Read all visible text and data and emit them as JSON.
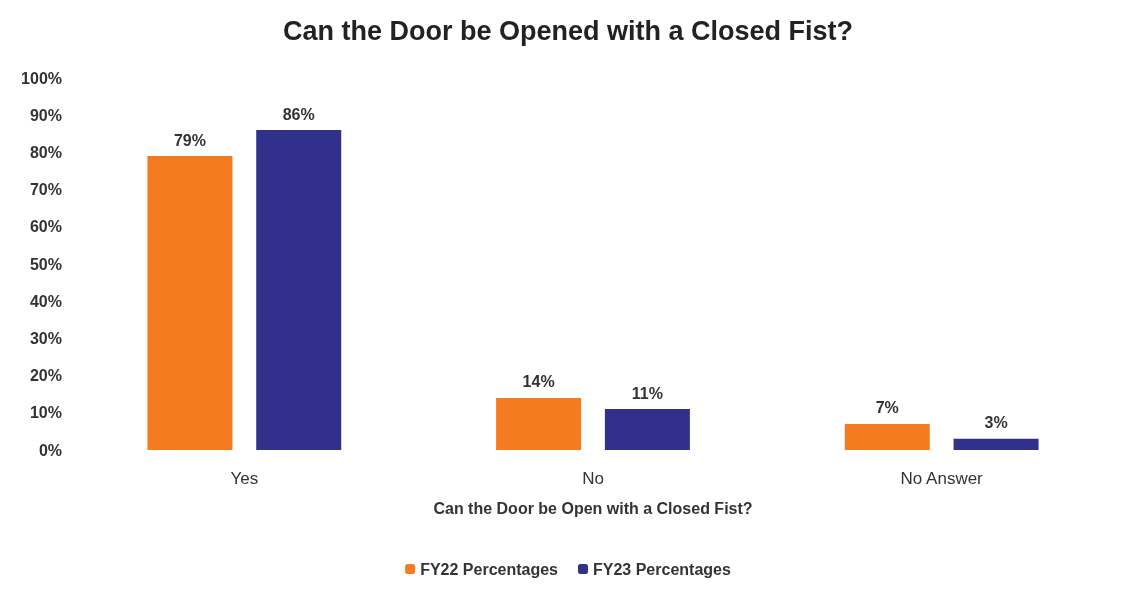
{
  "chart_data": {
    "type": "bar",
    "title": "Can the Door be Opened with a Closed Fist?",
    "xlabel": "Can the Door be Open with a Closed Fist?",
    "categories": [
      "Yes",
      "No",
      "No Answer"
    ],
    "series": [
      {
        "name": "FY22 Percentages",
        "color": "#f47b20",
        "values": [
          79,
          14,
          7
        ],
        "value_labels": [
          "79%",
          "14%",
          "7%"
        ]
      },
      {
        "name": "FY23 Percentages",
        "color": "#31318c",
        "values": [
          86,
          11,
          3
        ],
        "value_labels": [
          "86%",
          "11%",
          "3%"
        ]
      }
    ],
    "ylim": [
      0,
      100
    ],
    "yticks": [
      {
        "value": 0,
        "label": "0%"
      },
      {
        "value": 10,
        "label": "10%"
      },
      {
        "value": 20,
        "label": "20%"
      },
      {
        "value": 30,
        "label": "30%"
      },
      {
        "value": 40,
        "label": "40%"
      },
      {
        "value": 50,
        "label": "50%"
      },
      {
        "value": 60,
        "label": "60%"
      },
      {
        "value": 70,
        "label": "70%"
      },
      {
        "value": 80,
        "label": "80%"
      },
      {
        "value": 90,
        "label": "90%"
      },
      {
        "value": 100,
        "label": "100%"
      }
    ],
    "grid": false,
    "legend": "bottom"
  }
}
